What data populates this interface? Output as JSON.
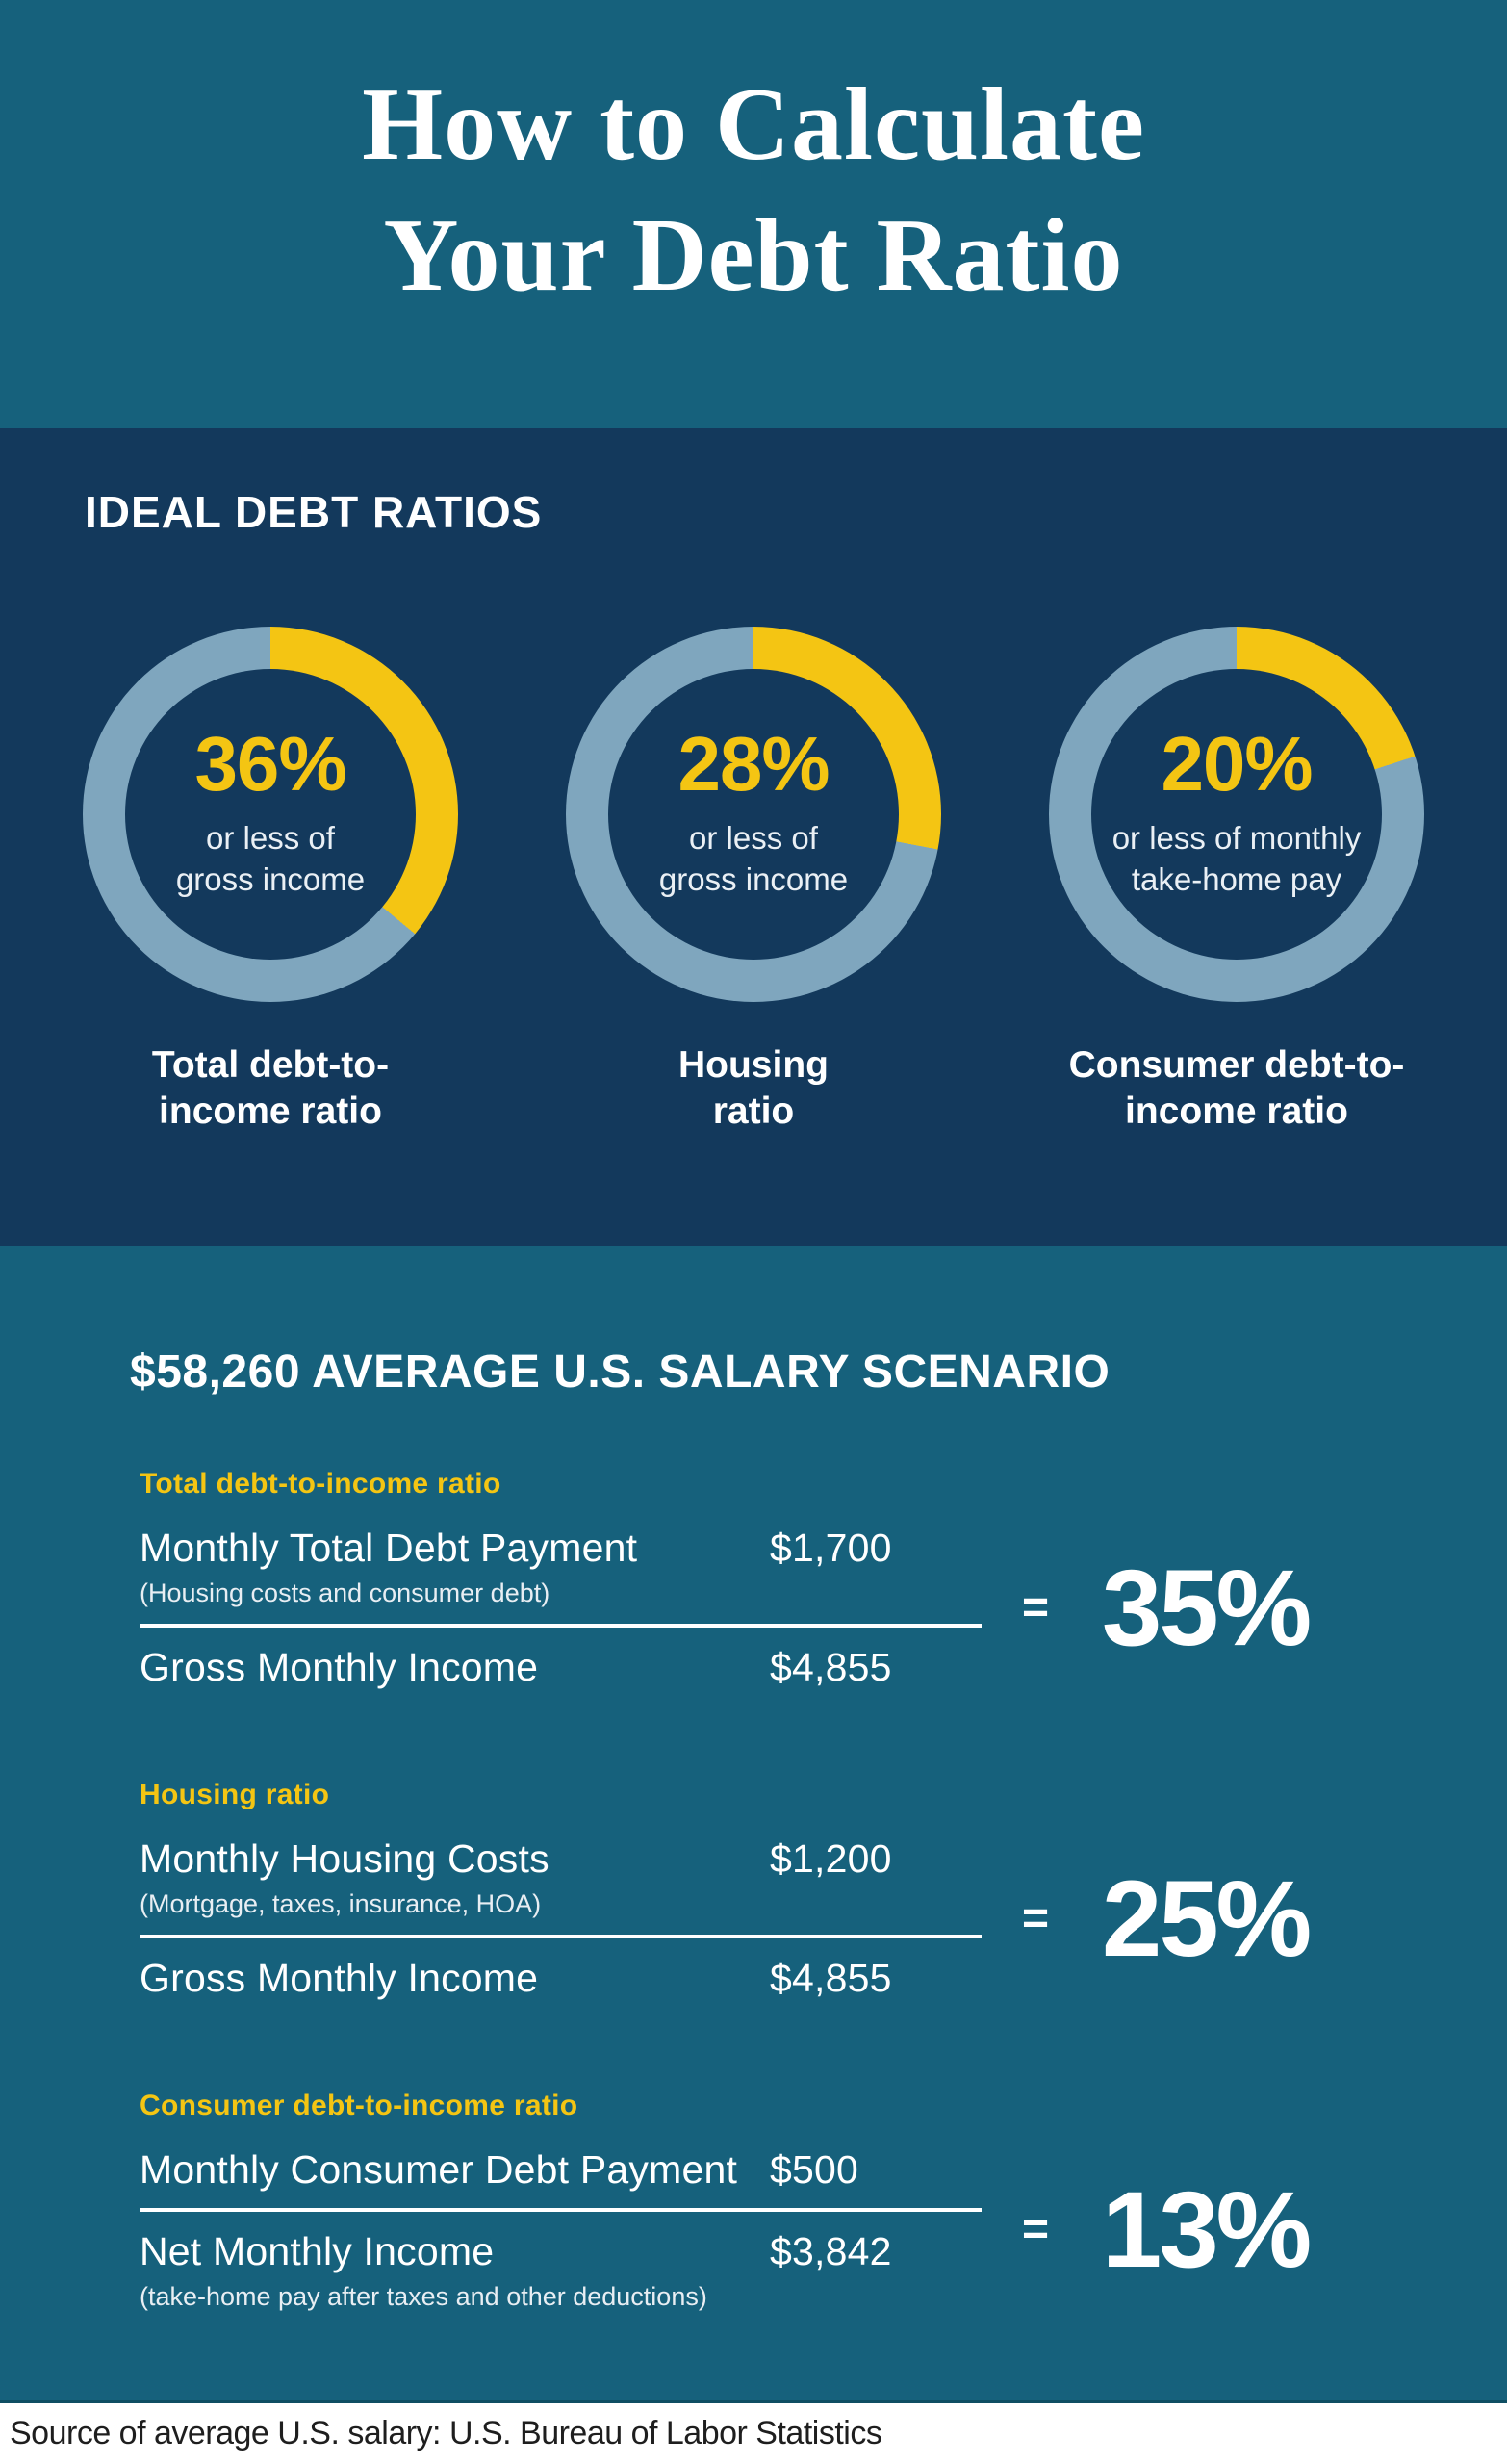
{
  "colors": {
    "teal": "#16617C",
    "navy": "#13395C",
    "accent": "#F4C513",
    "ring": "#7FA6BE",
    "footer-text": "#1E1E1E"
  },
  "header": {
    "title_line1": "How to Calculate",
    "title_line2": "Your Debt Ratio"
  },
  "ideal": {
    "heading": "IDEAL DEBT RATIOS",
    "donuts": [
      {
        "value": 36,
        "percent_label": "36%",
        "caption": "or less of\ngross income",
        "label": "Total debt-to-\nincome ratio"
      },
      {
        "value": 28,
        "percent_label": "28%",
        "caption": "or less of\ngross income",
        "label": "Housing\nratio"
      },
      {
        "value": 20,
        "percent_label": "20%",
        "caption": "or less of monthly\ntake-home pay",
        "label": "Consumer debt-to-\nincome ratio"
      }
    ]
  },
  "scenario": {
    "heading": "$58,260 AVERAGE U.S. SALARY SCENARIO",
    "calcs": [
      {
        "title": "Total debt-to-income ratio",
        "num_label": "Monthly Total Debt Payment",
        "num_note": "(Housing costs and consumer debt)",
        "num_value": "$1,700",
        "den_label": "Gross Monthly Income",
        "den_note": "",
        "den_value": "$4,855",
        "equals": "=",
        "result": "35%"
      },
      {
        "title": "Housing ratio",
        "num_label": "Monthly Housing Costs",
        "num_note": "(Mortgage, taxes, insurance, HOA)",
        "num_value": "$1,200",
        "den_label": "Gross Monthly Income",
        "den_note": "",
        "den_value": "$4,855",
        "equals": "=",
        "result": "25%"
      },
      {
        "title": "Consumer debt-to-income ratio",
        "num_label": "Monthly Consumer Debt Payment",
        "num_note": "",
        "num_value": "$500",
        "den_label": "Net Monthly Income",
        "den_note": "(take-home pay after taxes and other deductions)",
        "den_value": "$3,842",
        "equals": "=",
        "result": "13%"
      }
    ]
  },
  "footer": {
    "source": "Source of average U.S. salary: U.S. Bureau of Labor Statistics"
  },
  "chart_data": [
    {
      "type": "pie",
      "subtype": "donut",
      "title": "Total debt-to-income ratio",
      "center_label": "36%",
      "caption": "or less of gross income",
      "labels": [
        "ideal ratio",
        "remainder"
      ],
      "values": [
        36,
        64
      ],
      "colors": [
        "#F4C513",
        "#7FA6BE"
      ],
      "start_angle_deg": 0,
      "direction": "clockwise"
    },
    {
      "type": "pie",
      "subtype": "donut",
      "title": "Housing ratio",
      "center_label": "28%",
      "caption": "or less of gross income",
      "labels": [
        "ideal ratio",
        "remainder"
      ],
      "values": [
        28,
        72
      ],
      "colors": [
        "#F4C513",
        "#7FA6BE"
      ],
      "start_angle_deg": 0,
      "direction": "clockwise"
    },
    {
      "type": "pie",
      "subtype": "donut",
      "title": "Consumer debt-to-income ratio",
      "center_label": "20%",
      "caption": "or less of monthly take-home pay",
      "labels": [
        "ideal ratio",
        "remainder"
      ],
      "values": [
        20,
        80
      ],
      "colors": [
        "#F4C513",
        "#7FA6BE"
      ],
      "start_angle_deg": 0,
      "direction": "clockwise"
    },
    {
      "type": "table",
      "title": "$58,260 AVERAGE U.S. SALARY SCENARIO",
      "rows": [
        {
          "ratio": "Total debt-to-income ratio",
          "numerator": "Monthly Total Debt Payment (Housing costs and consumer debt)",
          "numerator_value": 1700,
          "denominator": "Gross Monthly Income",
          "denominator_value": 4855,
          "result_percent": 35
        },
        {
          "ratio": "Housing ratio",
          "numerator": "Monthly Housing Costs (Mortgage, taxes, insurance, HOA)",
          "numerator_value": 1200,
          "denominator": "Gross Monthly Income",
          "denominator_value": 4855,
          "result_percent": 25
        },
        {
          "ratio": "Consumer debt-to-income ratio",
          "numerator": "Monthly Consumer Debt Payment",
          "numerator_value": 500,
          "denominator": "Net Monthly Income (take-home pay after taxes and other deductions)",
          "denominator_value": 3842,
          "result_percent": 13
        }
      ]
    }
  ]
}
